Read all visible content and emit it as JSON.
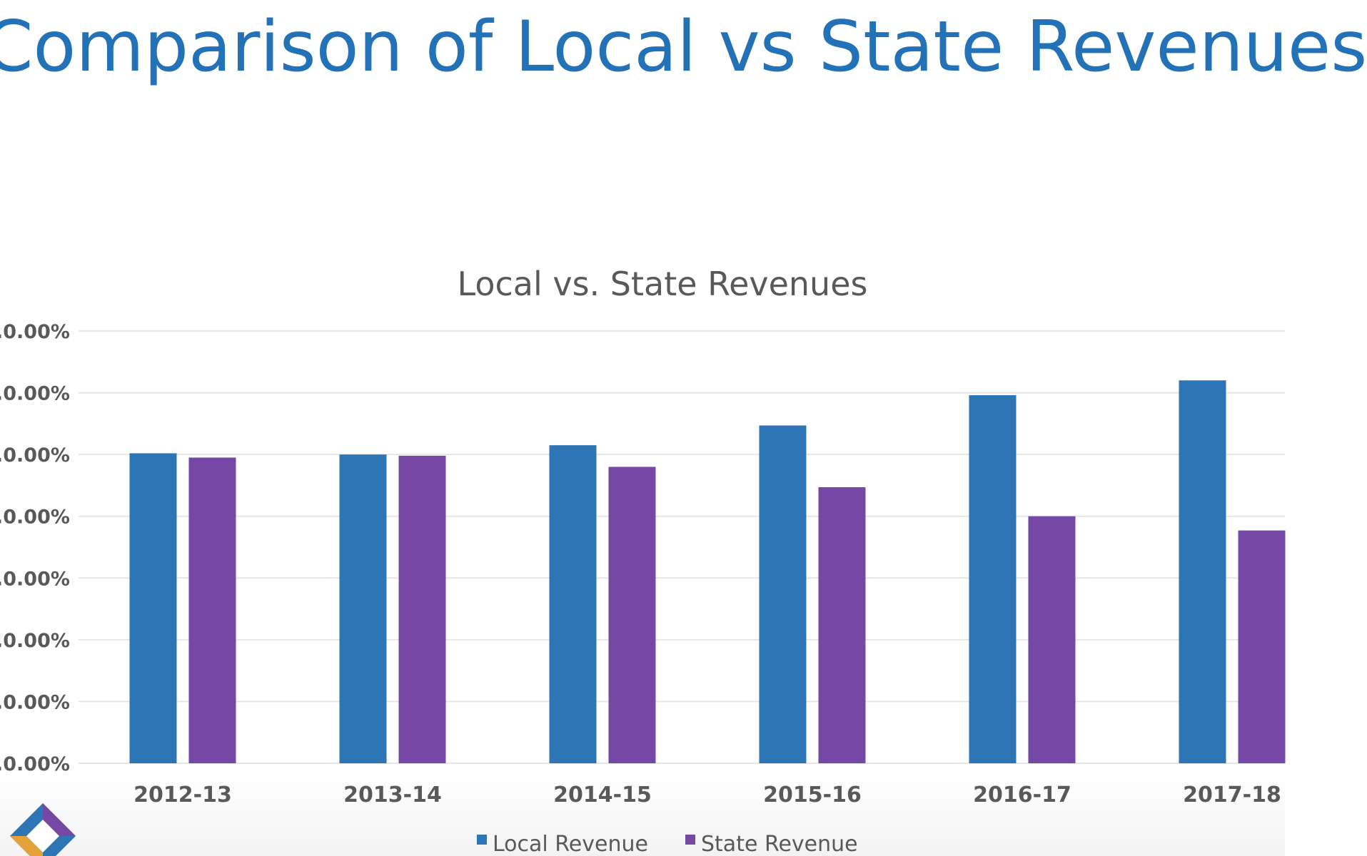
{
  "slide": {
    "title": "Comparison of Local vs State Revenues"
  },
  "colors": {
    "title": "#2372b8",
    "local": "#2e75b6",
    "state": "#7448a4",
    "gridline": "#e6e6e6",
    "text": "#595959"
  },
  "logo": {
    "icon": "multicolor-diamond-logo-icon"
  },
  "chart_data": {
    "type": "bar",
    "title": "Local vs. State Revenues",
    "xlabel": "",
    "ylabel": "",
    "categories": [
      "2012-13",
      "2013-14",
      "2014-15",
      "2015-16",
      "2016-17",
      "2017-18"
    ],
    "series": [
      {
        "name": "Local Revenue",
        "values": [
          50.2,
          50.0,
          51.5,
          54.7,
          59.6,
          62.0
        ]
      },
      {
        "name": "State Revenue",
        "values": [
          49.5,
          49.8,
          48.0,
          44.7,
          40.0,
          37.7
        ]
      }
    ],
    "ylim": [
      0,
      70
    ],
    "y_ticks": [
      0,
      10,
      20,
      30,
      40,
      50,
      60,
      70
    ],
    "y_tick_labels": [
      ".0.00%",
      ".0.00%",
      ".0.00%",
      ".0.00%",
      ".0.00%",
      ".0.00%",
      ".0.00%",
      ".0.00%"
    ],
    "grid": true,
    "legend_position": "bottom"
  }
}
